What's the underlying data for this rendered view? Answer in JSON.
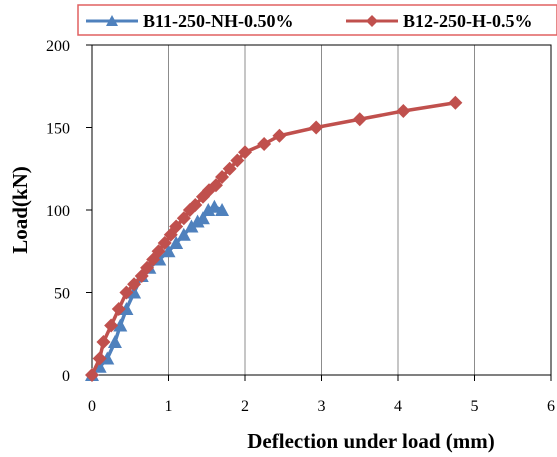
{
  "chart_data": {
    "type": "line",
    "title": "",
    "xlabel": "Deflection under load (mm)",
    "ylabel": "Load(kN)",
    "xlim": [
      0,
      6
    ],
    "ylim": [
      0,
      200
    ],
    "x_ticks": [
      0,
      1,
      2,
      3,
      4,
      5,
      6
    ],
    "y_ticks": [
      0,
      50,
      100,
      150,
      200
    ],
    "grid": "vertical",
    "legend_position": "top",
    "series": [
      {
        "name": "B11-250-NH-0.50%",
        "color": "#4F81BD",
        "marker": "triangle",
        "x": [
          0,
          0.1,
          0.2,
          0.3,
          0.37,
          0.45,
          0.55,
          0.65,
          0.75,
          0.88,
          1.0,
          1.1,
          1.2,
          1.3,
          1.38,
          1.45,
          1.52,
          1.6,
          1.7
        ],
        "y": [
          0,
          5,
          10,
          20,
          30,
          40,
          50,
          60,
          65,
          70,
          75,
          80,
          85,
          90,
          93,
          95,
          100,
          102,
          100
        ]
      },
      {
        "name": "B12-250-H-0.5%",
        "color": "#C0504D",
        "marker": "diamond",
        "x": [
          0,
          0.1,
          0.15,
          0.25,
          0.35,
          0.45,
          0.55,
          0.65,
          0.72,
          0.8,
          0.87,
          0.95,
          1.03,
          1.1,
          1.2,
          1.28,
          1.35,
          1.45,
          1.53,
          1.62,
          1.7,
          1.8,
          1.9,
          2.0,
          2.25,
          2.45,
          2.93,
          3.5,
          4.07,
          4.75
        ],
        "y": [
          0,
          10,
          20,
          30,
          40,
          50,
          55,
          60,
          65,
          70,
          75,
          80,
          85,
          90,
          95,
          100,
          103,
          108,
          112,
          115,
          120,
          125,
          130,
          135,
          140,
          145,
          150,
          155,
          160,
          165
        ]
      }
    ]
  }
}
